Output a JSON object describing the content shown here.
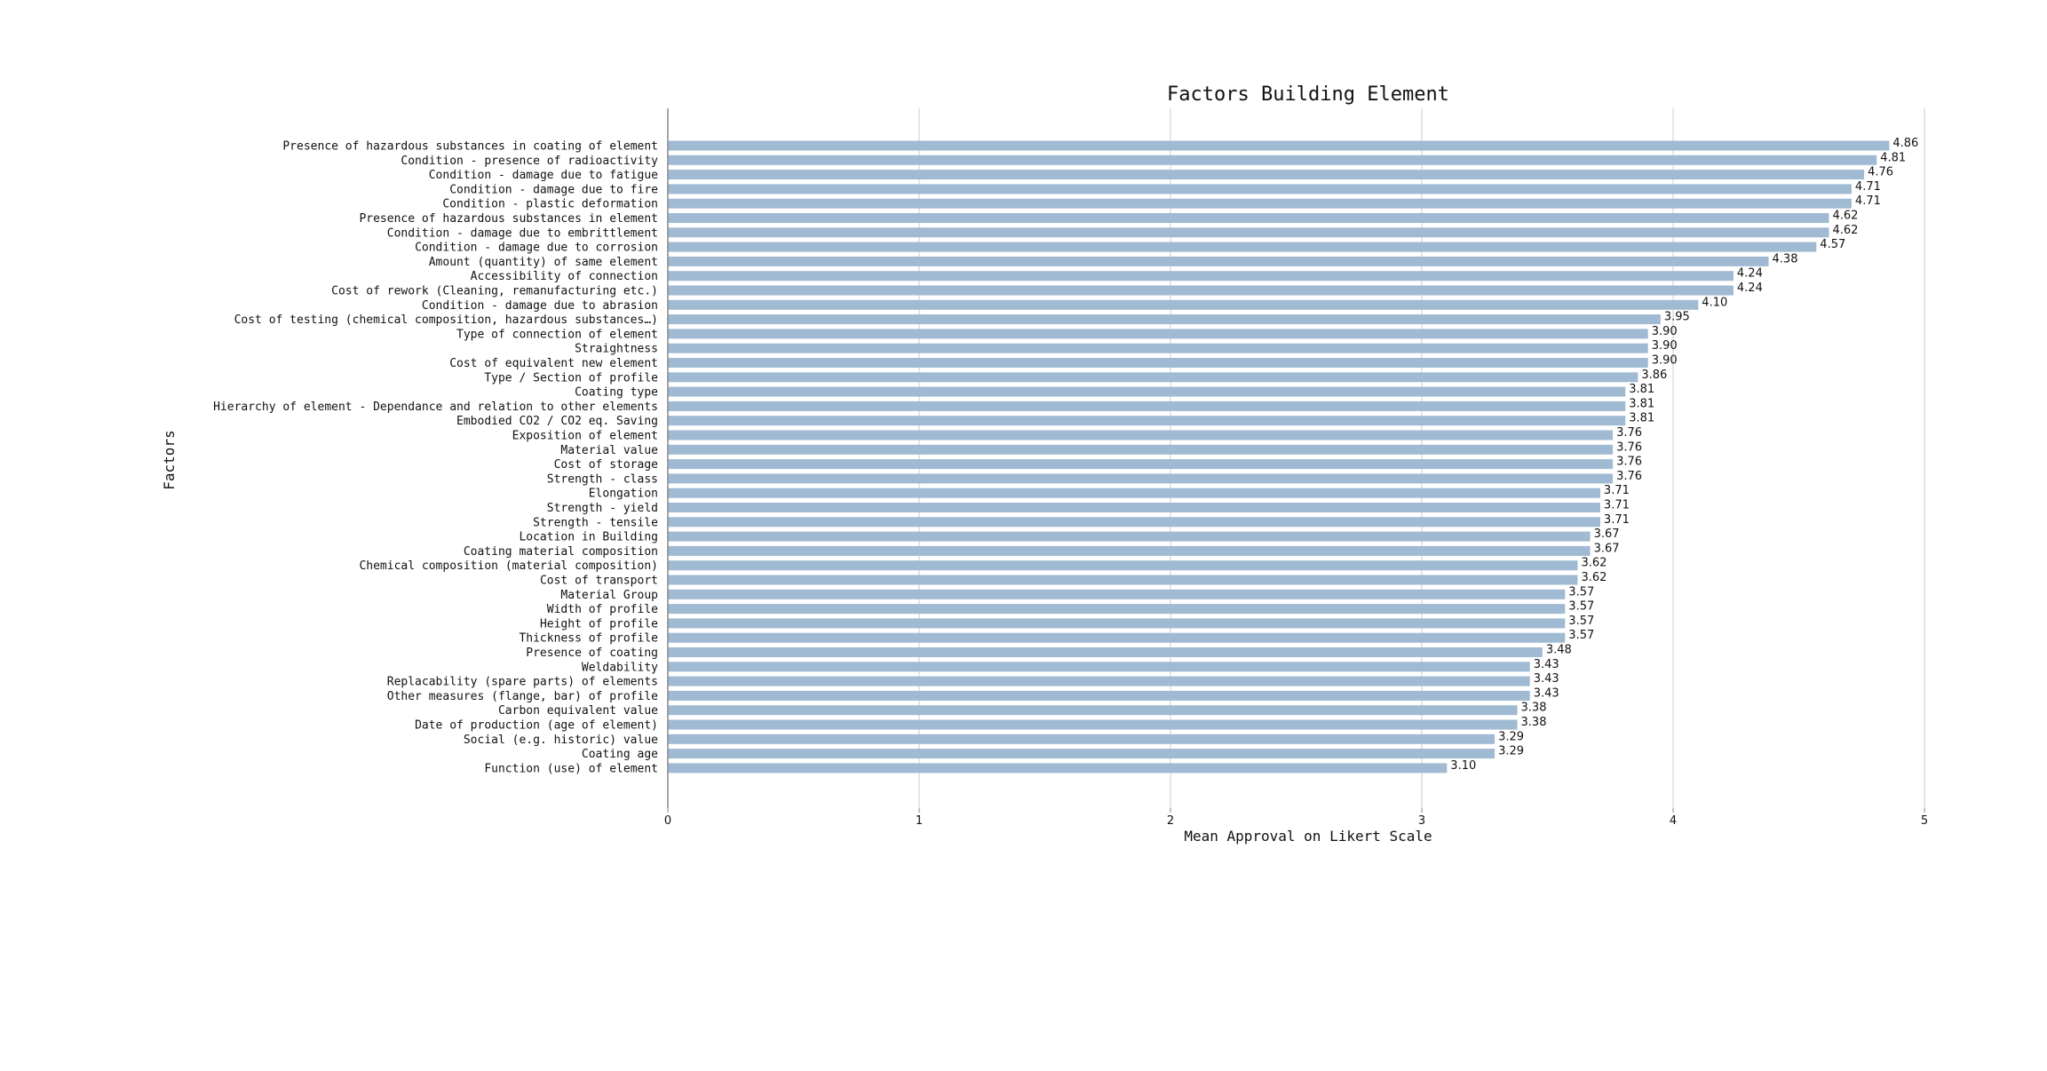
{
  "chart_data": {
    "type": "bar",
    "orientation": "horizontal",
    "title": "Factors Building Element",
    "xlabel": "Mean Approval on Likert Scale",
    "ylabel": "Factors",
    "xlim": [
      0,
      5
    ],
    "xticks": [
      "0",
      "1",
      "2",
      "3",
      "4",
      "5"
    ],
    "grid": "vertical",
    "colors": {
      "bar": "#9fbad2",
      "grid": "#cccccc",
      "axis": "#888888",
      "text": "#111111"
    },
    "categories": [
      "Presence of hazardous substances in coating of element",
      "Condition - presence of radioactivity",
      "Condition - damage due to fatigue",
      "Condition - damage due to fire",
      "Condition - plastic deformation",
      "Presence of hazardous substances in element",
      "Condition - damage due to embrittlement",
      "Condition - damage due to corrosion",
      "Amount (quantity) of same element",
      "Accessibility of connection",
      "Cost of rework (Cleaning, remanufacturing etc.)",
      "Condition - damage due to abrasion",
      "Cost of testing (chemical composition, hazardous substances…)",
      "Type of connection of element",
      "Straightness",
      "Cost of equivalent new element",
      "Type / Section of profile",
      "Coating type",
      "Hierarchy of element - Dependance and relation to other elements",
      "Embodied CO2 / CO2 eq. Saving",
      "Exposition of element",
      "Material value",
      "Cost of storage",
      "Strength - class",
      "Elongation",
      "Strength - yield",
      "Strength - tensile",
      "Location in Building",
      "Coating material composition",
      "Chemical composition (material composition)",
      "Cost of transport",
      "Material Group",
      "Width of profile",
      "Height of profile",
      "Thickness of profile",
      "Presence of coating",
      "Weldability",
      "Replacability (spare parts) of elements",
      "Other measures (flange, bar) of profile",
      "Carbon equivalent value",
      "Date of production (age of element)",
      "Social (e.g. historic) value",
      "Coating age",
      "Function (use) of element"
    ],
    "values": [
      4.86,
      4.81,
      4.76,
      4.71,
      4.71,
      4.62,
      4.62,
      4.57,
      4.38,
      4.24,
      4.24,
      4.1,
      3.95,
      3.9,
      3.9,
      3.9,
      3.86,
      3.81,
      3.81,
      3.81,
      3.76,
      3.76,
      3.76,
      3.76,
      3.71,
      3.71,
      3.71,
      3.67,
      3.67,
      3.62,
      3.62,
      3.57,
      3.57,
      3.57,
      3.57,
      3.48,
      3.43,
      3.43,
      3.43,
      3.38,
      3.38,
      3.29,
      3.29,
      3.1
    ],
    "value_labels": [
      "4.86",
      "4.81",
      "4.76",
      "4.71",
      "4.71",
      "4.62",
      "4.62",
      "4.57",
      "4.38",
      "4.24",
      "4.24",
      "4.10",
      "3.95",
      "3.90",
      "3.90",
      "3.90",
      "3.86",
      "3.81",
      "3.81",
      "3.81",
      "3.76",
      "3.76",
      "3.76",
      "3.76",
      "3.71",
      "3.71",
      "3.71",
      "3.67",
      "3.67",
      "3.62",
      "3.62",
      "3.57",
      "3.57",
      "3.57",
      "3.57",
      "3.48",
      "3.43",
      "3.43",
      "3.43",
      "3.38",
      "3.38",
      "3.29",
      "3.29",
      "3.10"
    ]
  }
}
